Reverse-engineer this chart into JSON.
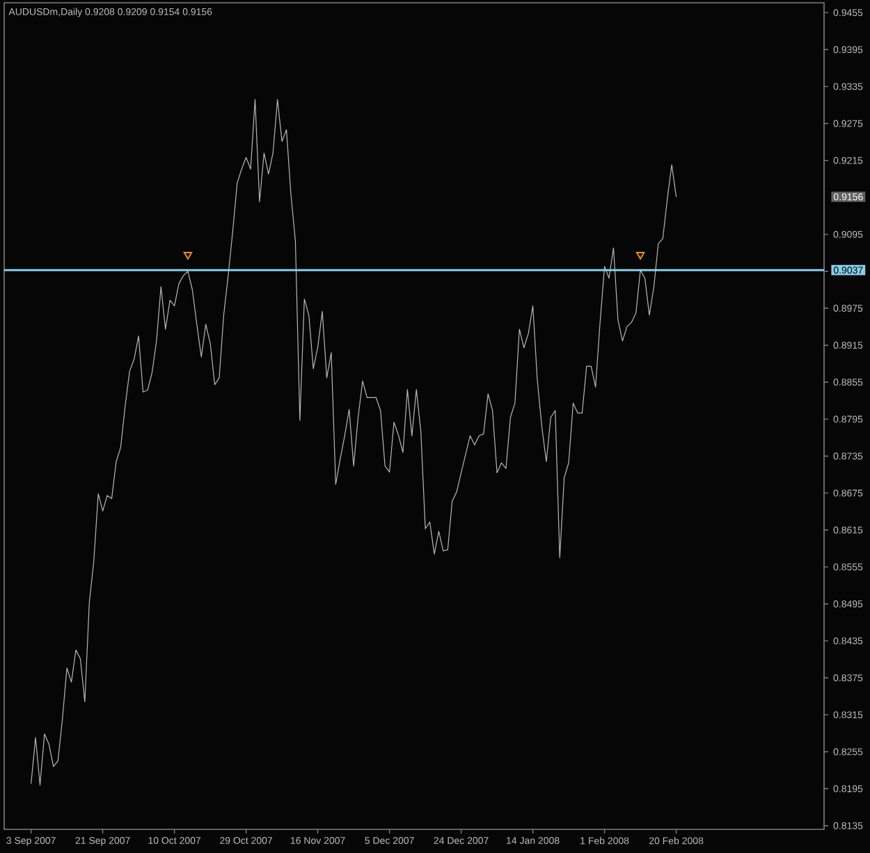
{
  "chart_data": {
    "type": "line",
    "title": "AUDUSDm,Daily 0.9208 0.9209 0.9154 0.9156",
    "categories": [
      "3 Sep 2007",
      null,
      null,
      null,
      null,
      null,
      null,
      null,
      null,
      null,
      null,
      null,
      null,
      null,
      null,
      null,
      "21 Sep 2007",
      null,
      null,
      null,
      null,
      null,
      null,
      null,
      null,
      null,
      null,
      null,
      null,
      null,
      null,
      null,
      "10 Oct 2007",
      null,
      null,
      null,
      null,
      null,
      null,
      null,
      null,
      null,
      null,
      null,
      null,
      null,
      null,
      null,
      "29 Oct 2007",
      null,
      null,
      null,
      null,
      null,
      null,
      null,
      null,
      null,
      null,
      null,
      null,
      null,
      null,
      null,
      "16 Nov 2007",
      null,
      null,
      null,
      null,
      null,
      null,
      null,
      null,
      null,
      null,
      null,
      null,
      null,
      null,
      null,
      "5 Dec 2007",
      null,
      null,
      null,
      null,
      null,
      null,
      null,
      null,
      null,
      null,
      null,
      null,
      null,
      null,
      null,
      "24 Dec 2007",
      null,
      null,
      null,
      null,
      null,
      null,
      null,
      null,
      null,
      null,
      null,
      null,
      null,
      null,
      null,
      "14 Jan 2008",
      null,
      null,
      null,
      null,
      null,
      null,
      null,
      null,
      null,
      null,
      null,
      null,
      null,
      null,
      null,
      "1 Feb 2008",
      null,
      null,
      null,
      null,
      null,
      null,
      null,
      null,
      null,
      null,
      null,
      null,
      null,
      null,
      null,
      "20 Feb 2008"
    ],
    "series": [
      {
        "color": "#b8b8b8",
        "values": [
          0.8203,
          0.8278,
          0.8201,
          0.8284,
          0.8267,
          0.8231,
          0.824,
          0.8308,
          0.8391,
          0.8368,
          0.842,
          0.8406,
          0.8336,
          0.8497,
          0.8564,
          0.8674,
          0.8646,
          0.8671,
          0.8666,
          0.8726,
          0.8749,
          0.8816,
          0.8873,
          0.8892,
          0.893,
          0.8839,
          0.8842,
          0.887,
          0.8922,
          0.901,
          0.8941,
          0.8988,
          0.8979,
          0.9015,
          0.9028,
          0.9035,
          0.9005,
          0.8949,
          0.8896,
          0.8949,
          0.8918,
          0.8851,
          0.8862,
          0.8964,
          0.9028,
          0.9099,
          0.9178,
          0.9201,
          0.922,
          0.9201,
          0.9314,
          0.9148,
          0.9227,
          0.9193,
          0.9227,
          0.9314,
          0.9246,
          0.9265,
          0.916,
          0.9084,
          0.8793,
          0.899,
          0.8964,
          0.8877,
          0.8912,
          0.897,
          0.8862,
          0.8903,
          0.8689,
          0.873,
          0.8768,
          0.8811,
          0.8719,
          0.8798,
          0.8857,
          0.883,
          0.883,
          0.883,
          0.8809,
          0.8719,
          0.8709,
          0.879,
          0.8769,
          0.8741,
          0.8843,
          0.8768,
          0.8843,
          0.8775,
          0.8617,
          0.8628,
          0.8576,
          0.8613,
          0.8581,
          0.8583,
          0.8662,
          0.8677,
          0.8708,
          0.8738,
          0.8768,
          0.8753,
          0.8768,
          0.8771,
          0.8836,
          0.8809,
          0.8708,
          0.8724,
          0.8715,
          0.8798,
          0.8821,
          0.8941,
          0.8911,
          0.8934,
          0.8979,
          0.8858,
          0.8783,
          0.8726,
          0.8798,
          0.8809,
          0.857,
          0.87,
          0.8724,
          0.8821,
          0.8805,
          0.8805,
          0.8881,
          0.8881,
          0.8847,
          0.8952,
          0.9043,
          0.9024,
          0.9073,
          0.8956,
          0.8922,
          0.8945,
          0.8952,
          0.8967,
          0.9037,
          0.9024,
          0.8964,
          0.9009,
          0.908,
          0.9088,
          0.9152,
          0.9208,
          0.9156
        ]
      },
      {
        "type": "scatter",
        "color": "#e8900c",
        "marker": "triangle",
        "values": [
          null,
          null,
          null,
          null,
          null,
          null,
          null,
          null,
          null,
          null,
          null,
          null,
          null,
          null,
          null,
          null,
          null,
          null,
          null,
          null,
          null,
          null,
          null,
          null,
          null,
          null,
          null,
          null,
          null,
          null,
          null,
          null,
          null,
          null,
          null,
          0.9062,
          null,
          null,
          null,
          null,
          null,
          null,
          null,
          null,
          null,
          null,
          null,
          null,
          null,
          null,
          null,
          null,
          null,
          null,
          null,
          null,
          null,
          null,
          null,
          null,
          null,
          null,
          null,
          null,
          null,
          null,
          null,
          null,
          null,
          null,
          null,
          null,
          null,
          null,
          null,
          null,
          null,
          null,
          null,
          null,
          null,
          null,
          null,
          null,
          null,
          null,
          null,
          null,
          null,
          null,
          null,
          null,
          null,
          null,
          null,
          null,
          null,
          null,
          null,
          null,
          null,
          null,
          null,
          null,
          null,
          null,
          null,
          null,
          null,
          null,
          null,
          null,
          null,
          null,
          null,
          null,
          null,
          null,
          null,
          null,
          null,
          null,
          null,
          null,
          null,
          null,
          null,
          null,
          null,
          null,
          null,
          null,
          null,
          null,
          null,
          null,
          0.9062,
          null,
          null,
          null,
          null,
          null,
          null,
          null,
          null
        ]
      }
    ],
    "ylim": [
      0.8129,
      0.9471
    ],
    "yticks": [
      0.8135,
      0.8195,
      0.8255,
      0.8315,
      0.8375,
      0.8435,
      0.8495,
      0.8555,
      0.8615,
      0.8675,
      0.8735,
      0.8795,
      0.8855,
      0.8915,
      0.8975,
      {
        "value": 0.9035,
        "label": null
      },
      0.9095,
      0.9215,
      0.9275,
      0.9335,
      0.9395,
      0.9455
    ],
    "ref_lines": [
      {
        "axis": "y",
        "value": 0.9037,
        "label": "0.9037",
        "color": "#87ceeb"
      }
    ],
    "annotations": [
      "0.9156"
    ]
  }
}
